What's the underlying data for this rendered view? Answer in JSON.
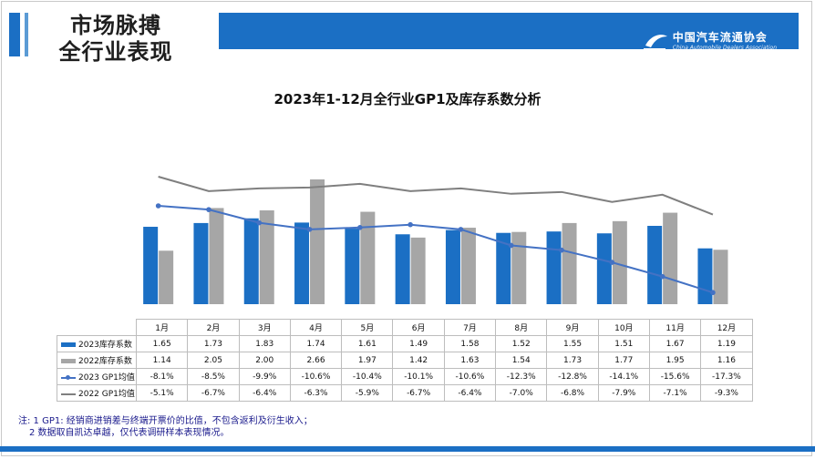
{
  "header": {
    "title_line1": "市场脉搏",
    "title_line2": "全行业表现",
    "logo_cn": "中国汽车流通协会",
    "logo_en": "China Automobile Dealers Association"
  },
  "chart_title": "2023年1-12月全行业GP1及库存系数分析",
  "chart_data": {
    "type": "bar",
    "categories": [
      "1月",
      "2月",
      "3月",
      "4月",
      "5月",
      "6月",
      "7月",
      "8月",
      "9月",
      "10月",
      "11月",
      "12月"
    ],
    "series": [
      {
        "name": "2023库存系数",
        "kind": "bar",
        "values": [
          "1.65",
          "1.73",
          "1.83",
          "1.74",
          "1.61",
          "1.49",
          "1.58",
          "1.52",
          "1.55",
          "1.51",
          "1.67",
          "1.19"
        ]
      },
      {
        "name": "2022库存系数",
        "kind": "bar",
        "values": [
          "1.14",
          "2.05",
          "2.00",
          "2.66",
          "1.97",
          "1.42",
          "1.63",
          "1.54",
          "1.73",
          "1.77",
          "1.95",
          "1.16"
        ]
      },
      {
        "name": "2023 GP1均值",
        "kind": "line",
        "values": [
          "-8.1%",
          "-8.5%",
          "-9.9%",
          "-10.6%",
          "-10.4%",
          "-10.1%",
          "-10.6%",
          "-12.3%",
          "-12.8%",
          "-14.1%",
          "-15.6%",
          "-17.3%"
        ]
      },
      {
        "name": "2022 GP1均值",
        "kind": "line",
        "values": [
          "-5.1%",
          "-6.7%",
          "-6.4%",
          "-6.3%",
          "-5.9%",
          "-6.7%",
          "-6.4%",
          "-7.0%",
          "-6.8%",
          "-7.9%",
          "-7.1%",
          "-9.3%"
        ]
      }
    ],
    "legend": "table-bottom",
    "grid": false,
    "colors": {
      "bar2023": "#1b6fc4",
      "bar2022": "#a6a6a6",
      "line2023": "#4472c4",
      "line2022": "#7f7f7f"
    }
  },
  "notes": {
    "line1": "注: 1 GP1: 经销商进销差与终端开票价的比值，不包含返利及衍生收入；",
    "line2": "2 数据取自凯达卓越，仅代表调研样本表现情况。"
  }
}
